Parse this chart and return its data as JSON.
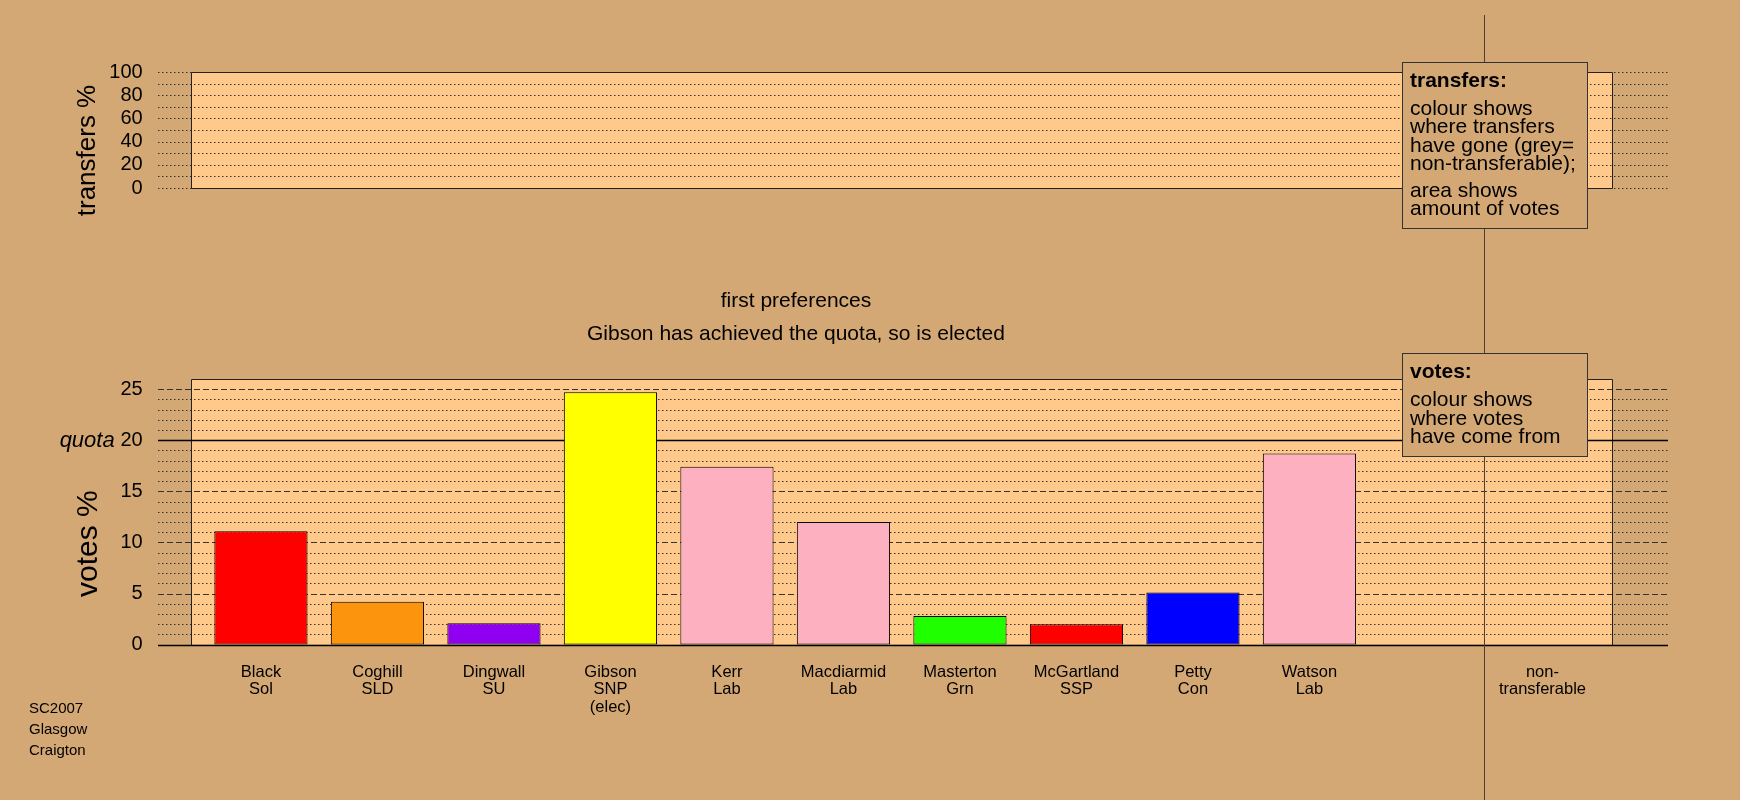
{
  "chart_data": [
    {
      "type": "bar",
      "ylabel": "transfers %",
      "categories": [
        "Black\nSol",
        "Coghill\nSLD",
        "Dingwall\nSU",
        "Gibson\nSNP\n(elec)",
        "Kerr\nLab",
        "Macdiarmid\nLab",
        "Masterton\nGrn",
        "McGartland\nSSP",
        "Petty\nCon",
        "Watson\nLab",
        null,
        "non-\ntransferable"
      ],
      "values": [
        null,
        null,
        null,
        null,
        null,
        null,
        null,
        null,
        null,
        null,
        null,
        null
      ],
      "ylim": [
        0,
        100
      ],
      "yticks": [
        0,
        {
          "value": 10,
          "label": null
        },
        20,
        {
          "value": 30,
          "label": null
        },
        40,
        {
          "value": 50,
          "label": null
        },
        60,
        {
          "value": 70,
          "label": null
        },
        80,
        {
          "value": 90,
          "label": null
        },
        100
      ],
      "grid": "y",
      "tick_labels": "y",
      "ref_lines": [
        {
          "axis": "x",
          "value": "non-\ntransferable",
          "color": "#4d3f33"
        }
      ],
      "annotations": [
        "transfers:",
        "colour shows\nwhere transfers\nhave gone (grey=\nnon-transferable);",
        "area shows\namount of votes"
      ]
    },
    {
      "type": "bar",
      "title": "first preferences",
      "subtitle": "Gibson has achieved the quota, so is elected",
      "ylabel": "votes %",
      "categories": [
        "Black\nSol",
        "Coghill\nSLD",
        "Dingwall\nSU",
        "Gibson\nSNP\n(elec)",
        "Kerr\nLab",
        "Macdiarmid\nLab",
        "Masterton\nGrn",
        "McGartland\nSSP",
        "Petty\nCon",
        "Watson\nLab",
        null,
        "non-\ntransferable"
      ],
      "values": [
        11.1,
        4.2,
        2.1,
        24.7,
        17.4,
        12.0,
        2.8,
        2.0,
        5.1,
        18.7,
        null,
        null
      ],
      "colors": [
        "#ff0000",
        "#fd940e",
        "#9000f0",
        "#ffff00",
        "#fdb0c0",
        "#fdb0c0",
        "#20ff00",
        "#ff0000",
        "#0000ff",
        "#fdb0c0",
        null,
        null
      ],
      "ylim": [
        0,
        26
      ],
      "yticks": [
        0,
        {
          "value": 1,
          "label": null
        },
        {
          "value": 2,
          "label": null
        },
        {
          "value": 3,
          "label": null
        },
        {
          "value": 4,
          "label": null
        },
        5,
        {
          "value": 6,
          "label": null
        },
        {
          "value": 7,
          "label": null
        },
        {
          "value": 8,
          "label": null
        },
        {
          "value": 9,
          "label": null
        },
        10,
        {
          "value": 11,
          "label": null
        },
        {
          "value": 12,
          "label": null
        },
        {
          "value": 13,
          "label": null
        },
        {
          "value": 14,
          "label": null
        },
        15,
        {
          "value": 16,
          "label": null
        },
        {
          "value": 17,
          "label": null
        },
        {
          "value": 18,
          "label": null
        },
        {
          "value": 19,
          "label": null
        },
        20,
        {
          "value": 21,
          "label": null
        },
        {
          "value": 22,
          "label": null
        },
        {
          "value": 23,
          "label": null
        },
        {
          "value": 24,
          "label": null
        },
        25
      ],
      "grid": "y",
      "ref_lines": [
        {
          "axis": "y",
          "value": 20,
          "label": "quota"
        },
        {
          "axis": "x",
          "value": "non-\ntransferable",
          "color": "#4d3f33"
        }
      ],
      "annotations": [
        "votes:",
        "colour shows\nwhere votes\nhave come from",
        "SC2007\nGlasgow\nCraigton"
      ]
    }
  ]
}
